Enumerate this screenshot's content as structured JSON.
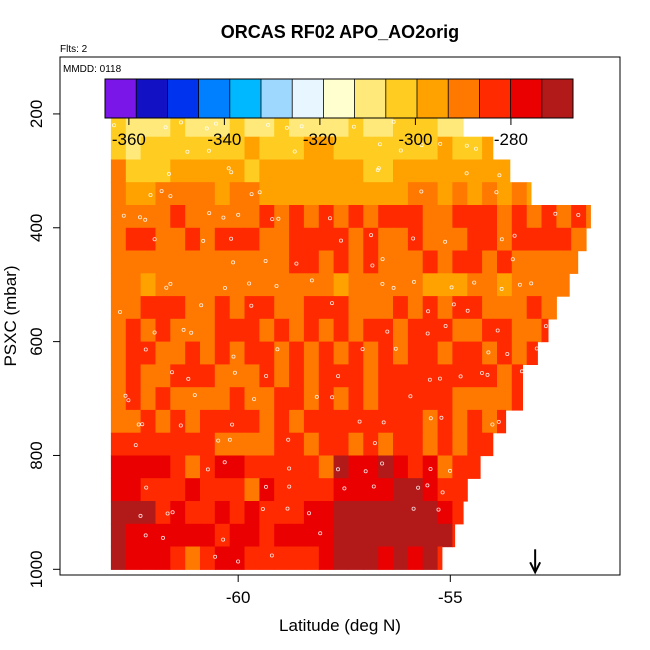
{
  "chart_data": {
    "type": "heatmap",
    "title": "ORCAS RF02 APO_AO2orig",
    "corner_notes": [
      "Flts: 2",
      "MMDD: 0118"
    ],
    "xlabel": "Latitude (deg N)",
    "ylabel": "PSXC (mbar)",
    "xlim": [
      -64.2,
      -51.0
    ],
    "ylim": [
      1010,
      100
    ],
    "y_reversed": true,
    "x_ticks": [
      -60,
      -55
    ],
    "x_tick_labels": [
      "-60",
      "-55"
    ],
    "y_ticks": [
      200,
      400,
      600,
      800,
      1000
    ],
    "y_tick_labels": [
      "200",
      "400",
      "600",
      "800",
      "1000"
    ],
    "colorbar": {
      "range": [
        -365,
        -267
      ],
      "ticks": [
        -360,
        -340,
        -320,
        -300,
        -280
      ],
      "tick_labels": [
        "-360",
        "-340",
        "-320",
        "-300",
        "-280"
      ],
      "colors": [
        "#7a16e8",
        "#1212c4",
        "#0033ee",
        "#0080ff",
        "#00b8ff",
        "#9fd8ff",
        "#e8f6ff",
        "#ffffd0",
        "#ffe97a",
        "#ffcc22",
        "#ffa200",
        "#ff7800",
        "#ff2a00",
        "#ea0000",
        "#b21a1a"
      ]
    },
    "lat_range": [
      -63.0,
      -51.1
    ],
    "rows": [
      {
        "p": 180,
        "lat_max": -55.5,
        "base": -322
      },
      {
        "p": 220,
        "lat_max": -54.7,
        "base": -308
      },
      {
        "p": 260,
        "lat_max": -54.0,
        "base": -302
      },
      {
        "p": 300,
        "lat_max": -53.6,
        "base": -297
      },
      {
        "p": 340,
        "lat_max": -53.1,
        "base": -294
      },
      {
        "p": 380,
        "lat_max": -51.7,
        "base": -288
      },
      {
        "p": 420,
        "lat_max": -51.8,
        "base": -287
      },
      {
        "p": 460,
        "lat_max": -52.0,
        "base": -289
      },
      {
        "p": 500,
        "lat_max": -52.2,
        "base": -291
      },
      {
        "p": 540,
        "lat_max": -52.5,
        "base": -287
      },
      {
        "p": 580,
        "lat_max": -52.7,
        "base": -286
      },
      {
        "p": 620,
        "lat_max": -52.95,
        "base": -286
      },
      {
        "p": 660,
        "lat_max": -53.3,
        "base": -286
      },
      {
        "p": 700,
        "lat_max": -53.3,
        "base": -287
      },
      {
        "p": 740,
        "lat_max": -53.7,
        "base": -286
      },
      {
        "p": 780,
        "lat_max": -54.0,
        "base": -285
      },
      {
        "p": 820,
        "lat_max": -54.3,
        "base": -284
      },
      {
        "p": 860,
        "lat_max": -54.6,
        "base": -283
      },
      {
        "p": 900,
        "lat_max": -54.7,
        "base": -280
      },
      {
        "p": 940,
        "lat_max": -54.9,
        "base": -279
      },
      {
        "p": 980,
        "lat_max": -55.2,
        "base": -283
      }
    ],
    "marker": {
      "lat": -53.0,
      "p": 1000
    }
  }
}
